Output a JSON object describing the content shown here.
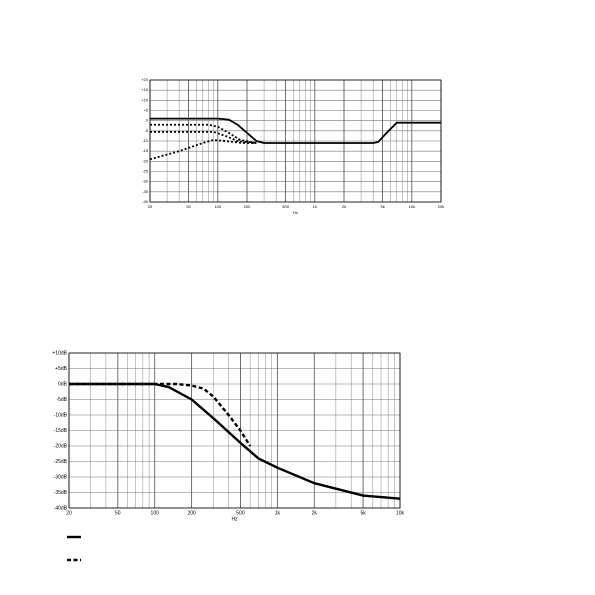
{
  "chart_data": [
    {
      "type": "line",
      "x_label": "Hz",
      "log_x": true,
      "grid": true,
      "xlim": [
        20,
        20000
      ],
      "xticks": [
        20,
        50,
        100,
        200,
        500,
        {
          "value": 1000,
          "label": "1k"
        },
        {
          "value": 2000,
          "label": "2k"
        },
        {
          "value": 5000,
          "label": "5k"
        },
        {
          "value": 10000,
          "label": "10k"
        },
        {
          "value": 20000,
          "label": "20k"
        }
      ],
      "ylim": [
        -40,
        20
      ],
      "yticks": [
        {
          "value": 20,
          "label": "+20"
        },
        {
          "value": 15,
          "label": "+15"
        },
        {
          "value": 10,
          "label": "+10"
        },
        {
          "value": 5,
          "label": "+5"
        },
        0,
        -5,
        -10,
        -15,
        -20,
        -25,
        -30,
        -35,
        -40
      ],
      "series": [
        {
          "color": "#000000",
          "style": "solid",
          "x": [
            20,
            100,
            130,
            160,
            200,
            250,
            300,
            1000,
            4000,
            4500,
            5500,
            7000,
            20000
          ],
          "values": [
            1,
            1,
            0.5,
            -2,
            -6,
            -10,
            -11,
            -11,
            -11,
            -10.5,
            -6,
            -1,
            -1
          ]
        },
        {
          "color": "#000000",
          "style": "dotted",
          "x": [
            20,
            80,
            100,
            130,
            170,
            250
          ],
          "values": [
            -2,
            -2,
            -3,
            -6,
            -9.5,
            -11
          ]
        },
        {
          "color": "#000000",
          "style": "dotted",
          "x": [
            20,
            90,
            120,
            160,
            250
          ],
          "values": [
            -5.5,
            -5.5,
            -7.5,
            -10,
            -11
          ]
        },
        {
          "color": "#000000",
          "style": "dotted",
          "x": [
            20,
            40,
            70,
            90,
            120,
            180,
            250
          ],
          "values": [
            -19,
            -15,
            -11,
            -9.5,
            -10,
            -11,
            -11
          ]
        }
      ]
    },
    {
      "type": "line",
      "x_label": "Hz",
      "log_x": true,
      "grid": true,
      "legend": true,
      "xlim": [
        20,
        10000
      ],
      "xticks": [
        20,
        50,
        100,
        200,
        500,
        {
          "value": 1000,
          "label": "1k"
        },
        {
          "value": 2000,
          "label": "2k"
        },
        {
          "value": 5000,
          "label": "5k"
        },
        {
          "value": 10000,
          "label": "10k"
        }
      ],
      "ylim": [
        -40,
        10
      ],
      "yticks": [
        {
          "value": 10,
          "label": "+10dB"
        },
        {
          "value": 5,
          "label": "+5dB"
        },
        {
          "value": 0,
          "label": "0dB"
        },
        {
          "value": -5,
          "label": "-5dB"
        },
        {
          "value": -10,
          "label": "-10dB"
        },
        {
          "value": -15,
          "label": "-15dB"
        },
        {
          "value": -20,
          "label": "-20dB"
        },
        {
          "value": -25,
          "label": "-25dB"
        },
        {
          "value": -30,
          "label": "-30dB"
        },
        {
          "value": -35,
          "label": "-35dB"
        },
        {
          "value": -40,
          "label": "-40dB"
        }
      ],
      "series": [
        {
          "color": "#000000",
          "style": "solid",
          "x": [
            20,
            100,
            130,
            200,
            300,
            500,
            700,
            1000,
            2000,
            5000,
            10000
          ],
          "values": [
            0,
            0,
            -1,
            -5,
            -11,
            -19,
            -24,
            -27,
            -32,
            -36,
            -37
          ]
        },
        {
          "color": "#000000",
          "style": "dashed",
          "x": [
            20,
            150,
            200,
            250,
            300,
            400,
            500,
            600
          ],
          "values": [
            0,
            0,
            -0.5,
            -1.5,
            -4,
            -10,
            -15,
            -20
          ]
        }
      ]
    }
  ]
}
